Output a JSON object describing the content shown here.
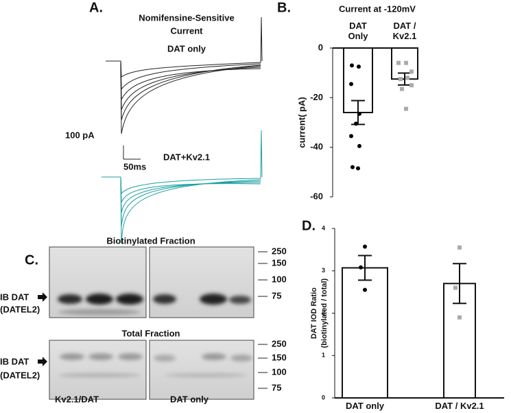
{
  "panel_a": {
    "label": "A.",
    "title": [
      "Nomifensine-Sensitive",
      "Current"
    ],
    "trace_labels": [
      "DAT only",
      "DAT+Kv2.1"
    ],
    "scale_bar": {
      "y": "100 pA",
      "x": "50ms"
    }
  },
  "chart_data": [
    {
      "label": "B.",
      "type": "bar",
      "title": "Current at -120mV",
      "categories": [
        "DAT Only",
        "DAT / Kv2.1"
      ],
      "values": [
        -26,
        -12.5
      ],
      "errors": [
        4.8,
        2.4
      ],
      "points": [
        [
          -7,
          -7.5,
          -14.5,
          -26.5,
          -30.5,
          -35.5,
          -39.5,
          -48,
          -48.5
        ],
        [
          -6,
          -6,
          -9.5,
          -12.5,
          -12,
          -15,
          -16.5,
          -24.5
        ]
      ],
      "colors": [
        "#000000",
        "#aaaaaa"
      ],
      "ylabel": [
        "current( pA)"
      ],
      "ylim": [
        -60,
        0
      ],
      "yticks": [
        0,
        -20,
        -40,
        -60
      ]
    },
    {
      "label": "D.",
      "type": "bar",
      "categories": [
        "DAT only",
        "DAT / Kv2.1"
      ],
      "values": [
        3.07,
        2.7
      ],
      "errors": [
        0.29,
        0.47
      ],
      "points": [
        [
          3.57,
          3.08,
          2.55
        ],
        [
          3.55,
          2.6,
          1.9
        ]
      ],
      "colors": [
        "#000000",
        "#aaaaaa"
      ],
      "ylabel": [
        "DAT IOD Ratio",
        "(biotinylated / total)"
      ],
      "ylim": [
        0,
        4
      ],
      "yticks": [
        0,
        1,
        2,
        3,
        4
      ]
    }
  ],
  "panel_c": {
    "label": "C.",
    "groups": [
      "Kv2.1/DAT",
      "DAT only"
    ],
    "fractions": [
      {
        "title": "Biotinylated Fraction",
        "row_label": "IB DAT",
        "row_sublabel": "(DATEL2)",
        "markers": [
          250,
          150,
          100,
          75
        ]
      },
      {
        "title": "Total Fraction",
        "row_label": "IB DAT",
        "row_sublabel": "(DATEL2)",
        "markers": [
          250,
          150,
          100,
          75
        ]
      }
    ]
  }
}
